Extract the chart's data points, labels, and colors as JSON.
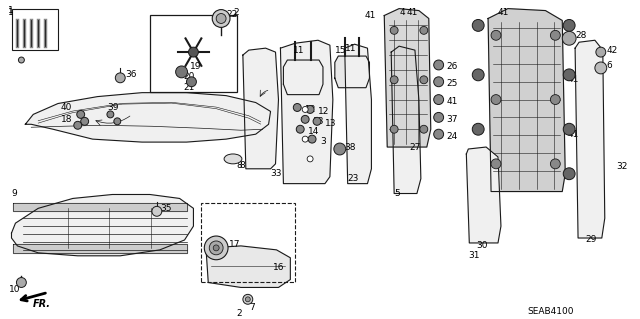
{
  "background_color": "#ffffff",
  "diagram_code": "SEAB4100",
  "line_color": "#1a1a1a",
  "text_color": "#000000",
  "font_size": 6.5,
  "fill_light": "#e8e8e8",
  "fill_mid": "#c8c8c8",
  "fill_dark": "#a0a0a0"
}
